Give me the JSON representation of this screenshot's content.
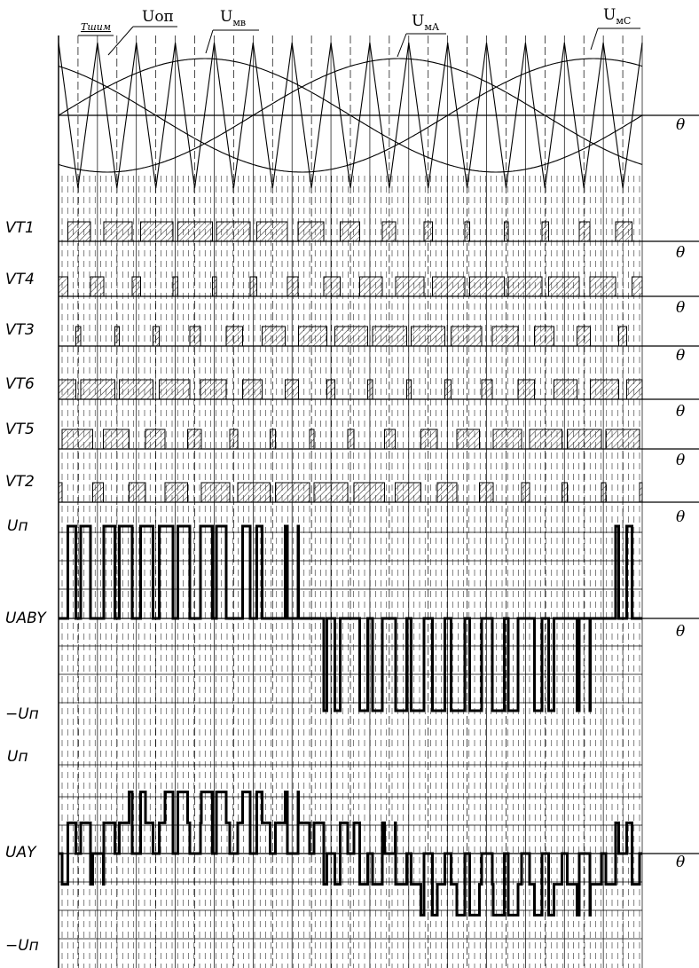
{
  "top_labels": {
    "period": "Тшим",
    "carrier": "Uоп",
    "mod_b": {
      "main": "U",
      "sub": "мв"
    },
    "mod_a": {
      "main": "U",
      "sub": "мА"
    },
    "mod_c": {
      "main": "U",
      "sub": "мС"
    }
  },
  "axis_symbol": "θ",
  "switch_rows": [
    "VT1",
    "VT4",
    "VT3",
    "VT6",
    "VT5",
    "VT2"
  ],
  "line_voltage": {
    "pos_label": "Uп",
    "name_label": "UABY",
    "neg_label": "−Uп"
  },
  "phase_voltage": {
    "pos_label": "Uп",
    "name_label": "UAY",
    "neg_label": "−Uп"
  },
  "colors": {
    "ink": "#000000",
    "hatch": "#333333",
    "background": "#ffffff"
  }
}
